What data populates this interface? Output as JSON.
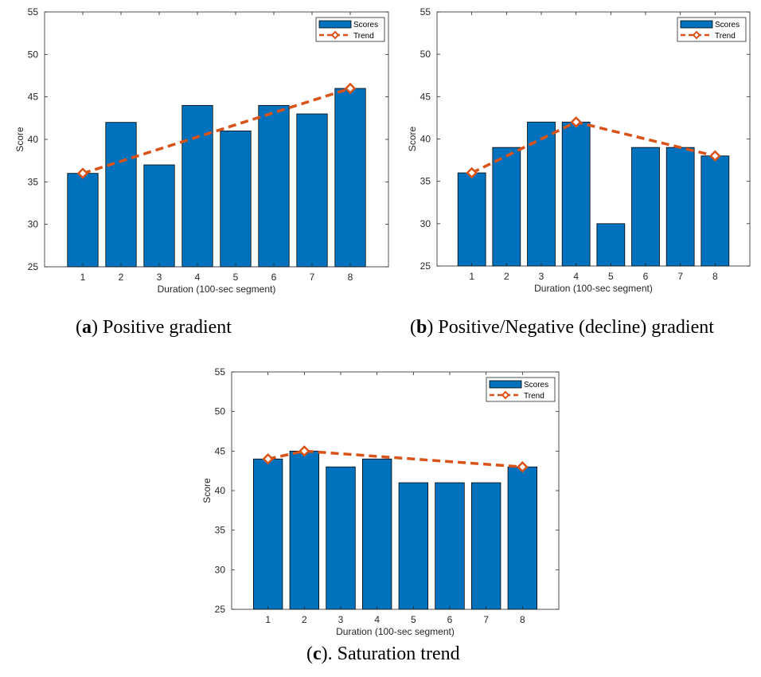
{
  "colors": {
    "bar_fill": "#0072BD",
    "bar_stroke": "#000000",
    "trend": "#D95319",
    "axis": "#262626"
  },
  "chart_data": [
    {
      "type": "bar",
      "caption_letter": "a",
      "caption_text": " Positive gradient",
      "categories": [
        "1",
        "2",
        "3",
        "4",
        "5",
        "6",
        "7",
        "8"
      ],
      "values": [
        36,
        42,
        37,
        44,
        41,
        44,
        43,
        46
      ],
      "trend": {
        "x": [
          1,
          8
        ],
        "y": [
          36,
          46
        ],
        "markers": [
          1,
          8
        ]
      },
      "xlabel": "Duration (100-sec segment)",
      "ylabel": "Score",
      "ylim": [
        25,
        55
      ],
      "yticks": [
        "25",
        "30",
        "35",
        "40",
        "45",
        "50",
        "55"
      ],
      "legend": [
        "Scores",
        "Trend"
      ],
      "legend_position": "top-right",
      "grid": false
    },
    {
      "type": "bar",
      "caption_letter": "b",
      "caption_text": " Positive/Negative (decline) gradient",
      "categories": [
        "1",
        "2",
        "3",
        "4",
        "5",
        "6",
        "7",
        "8"
      ],
      "values": [
        36,
        39,
        42,
        42,
        30,
        39,
        39,
        38
      ],
      "trend": {
        "x": [
          1,
          4,
          8
        ],
        "y": [
          36,
          42,
          38
        ],
        "markers": [
          1,
          4,
          8
        ]
      },
      "xlabel": "Duration (100-sec segment)",
      "ylabel": "Score",
      "ylim": [
        25,
        55
      ],
      "yticks": [
        "25",
        "30",
        "35",
        "40",
        "45",
        "50",
        "55"
      ],
      "legend": [
        "Scores",
        "Trend"
      ],
      "legend_position": "top-right",
      "grid": false
    },
    {
      "type": "bar",
      "caption_letter": "c",
      "caption_text": ". Saturation trend",
      "categories": [
        "1",
        "2",
        "3",
        "4",
        "5",
        "6",
        "7",
        "8"
      ],
      "values": [
        44,
        45,
        43,
        44,
        41,
        41,
        41,
        43
      ],
      "trend": {
        "x": [
          1,
          2,
          8
        ],
        "y": [
          44,
          45,
          43
        ],
        "markers": [
          1,
          2,
          8
        ]
      },
      "xlabel": "Duration (100-sec segment)",
      "ylabel": "Score",
      "ylim": [
        25,
        55
      ],
      "yticks": [
        "25",
        "30",
        "35",
        "40",
        "45",
        "50",
        "55"
      ],
      "legend": [
        "Scores",
        "Trend"
      ],
      "legend_position": "top-right",
      "grid": false
    }
  ]
}
